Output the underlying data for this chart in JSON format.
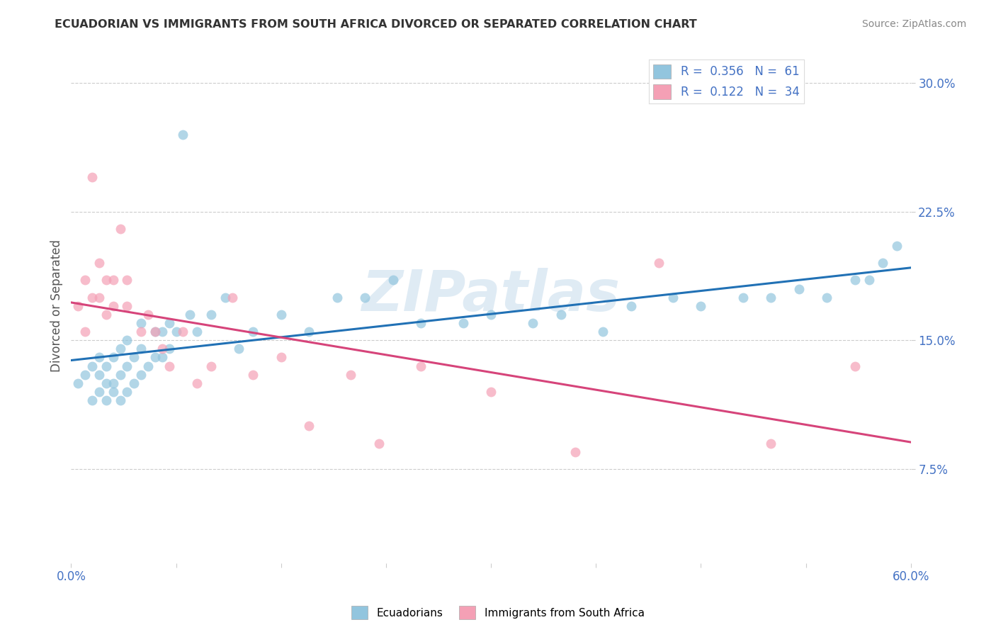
{
  "title": "ECUADORIAN VS IMMIGRANTS FROM SOUTH AFRICA DIVORCED OR SEPARATED CORRELATION CHART",
  "source": "Source: ZipAtlas.com",
  "ylabel": "Divorced or Separated",
  "xlim": [
    0.0,
    0.6
  ],
  "ylim": [
    0.02,
    0.32
  ],
  "xticks": [
    0.0,
    0.075,
    0.15,
    0.225,
    0.3,
    0.375,
    0.45,
    0.525,
    0.6
  ],
  "xtick_labels": [
    "0.0%",
    "",
    "",
    "",
    "",
    "",
    "",
    "",
    "60.0%"
  ],
  "yticks": [
    0.075,
    0.15,
    0.225,
    0.3
  ],
  "ytick_labels": [
    "7.5%",
    "15.0%",
    "22.5%",
    "30.0%"
  ],
  "blue_color": "#92c5de",
  "pink_color": "#f4a0b5",
  "blue_line_color": "#2171b5",
  "pink_line_color": "#d6447a",
  "legend_blue_label": "R =  0.356   N =  61",
  "legend_pink_label": "R =  0.122   N =  34",
  "legend_blue_series": "Ecuadorians",
  "legend_pink_series": "Immigrants from South Africa",
  "watermark": "ZIPatlas",
  "blue_x": [
    0.005,
    0.01,
    0.015,
    0.015,
    0.02,
    0.02,
    0.02,
    0.025,
    0.025,
    0.025,
    0.03,
    0.03,
    0.03,
    0.035,
    0.035,
    0.035,
    0.04,
    0.04,
    0.04,
    0.045,
    0.045,
    0.05,
    0.05,
    0.05,
    0.055,
    0.06,
    0.06,
    0.065,
    0.065,
    0.07,
    0.07,
    0.075,
    0.08,
    0.085,
    0.09,
    0.1,
    0.11,
    0.12,
    0.13,
    0.15,
    0.17,
    0.19,
    0.21,
    0.23,
    0.25,
    0.28,
    0.3,
    0.33,
    0.35,
    0.38,
    0.4,
    0.43,
    0.45,
    0.48,
    0.5,
    0.52,
    0.54,
    0.56,
    0.57,
    0.58,
    0.59
  ],
  "blue_y": [
    0.125,
    0.13,
    0.115,
    0.135,
    0.12,
    0.13,
    0.14,
    0.115,
    0.125,
    0.135,
    0.12,
    0.125,
    0.14,
    0.115,
    0.13,
    0.145,
    0.12,
    0.135,
    0.15,
    0.125,
    0.14,
    0.13,
    0.145,
    0.16,
    0.135,
    0.14,
    0.155,
    0.14,
    0.155,
    0.145,
    0.16,
    0.155,
    0.27,
    0.165,
    0.155,
    0.165,
    0.175,
    0.145,
    0.155,
    0.165,
    0.155,
    0.175,
    0.175,
    0.185,
    0.16,
    0.16,
    0.165,
    0.16,
    0.165,
    0.155,
    0.17,
    0.175,
    0.17,
    0.175,
    0.175,
    0.18,
    0.175,
    0.185,
    0.185,
    0.195,
    0.205
  ],
  "pink_x": [
    0.005,
    0.01,
    0.01,
    0.015,
    0.015,
    0.02,
    0.02,
    0.025,
    0.025,
    0.03,
    0.03,
    0.035,
    0.04,
    0.04,
    0.05,
    0.055,
    0.06,
    0.065,
    0.07,
    0.08,
    0.09,
    0.1,
    0.115,
    0.13,
    0.15,
    0.17,
    0.2,
    0.22,
    0.25,
    0.3,
    0.36,
    0.42,
    0.5,
    0.56
  ],
  "pink_y": [
    0.17,
    0.185,
    0.155,
    0.245,
    0.175,
    0.195,
    0.175,
    0.185,
    0.165,
    0.185,
    0.17,
    0.215,
    0.185,
    0.17,
    0.155,
    0.165,
    0.155,
    0.145,
    0.135,
    0.155,
    0.125,
    0.135,
    0.175,
    0.13,
    0.14,
    0.1,
    0.13,
    0.09,
    0.135,
    0.12,
    0.085,
    0.195,
    0.09,
    0.135
  ],
  "figsize": [
    14.06,
    8.92
  ],
  "dpi": 100
}
